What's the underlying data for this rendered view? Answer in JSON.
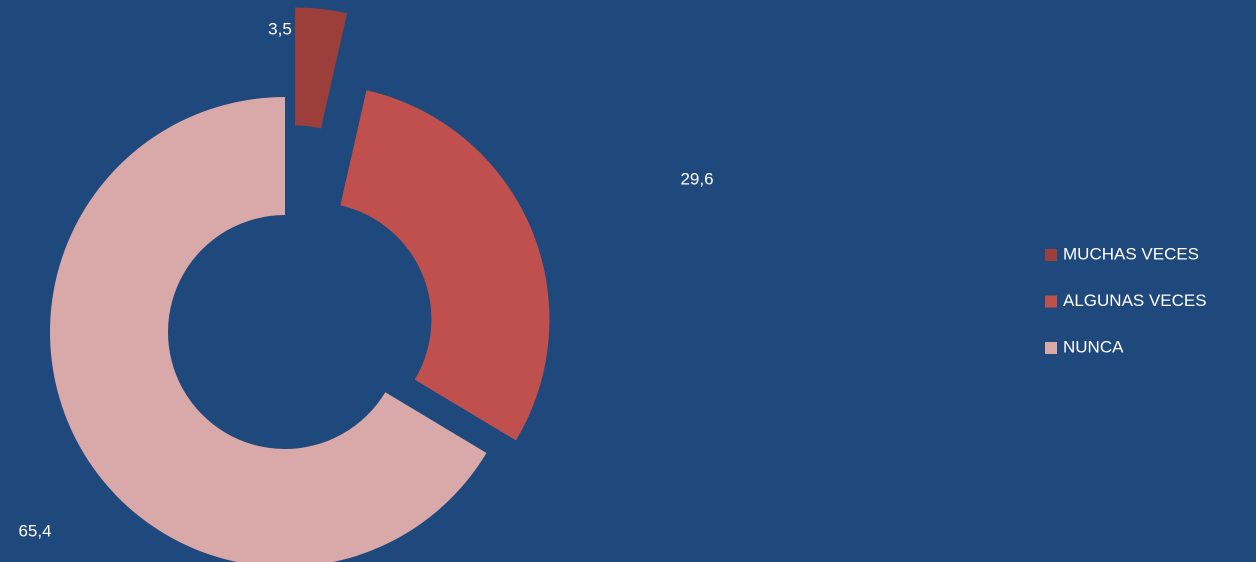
{
  "chart_data": {
    "type": "donut",
    "categories": [
      "MUCHAS VECES",
      "ALGUNAS VECES",
      "NUNCA"
    ],
    "values": [
      3.5,
      29.6,
      65.4
    ],
    "value_labels": [
      "3,5",
      "29,6",
      "65,4"
    ],
    "colors": [
      "#9c3f3b",
      "#c0504d",
      "#d9a9a9"
    ],
    "legend": "right"
  }
}
